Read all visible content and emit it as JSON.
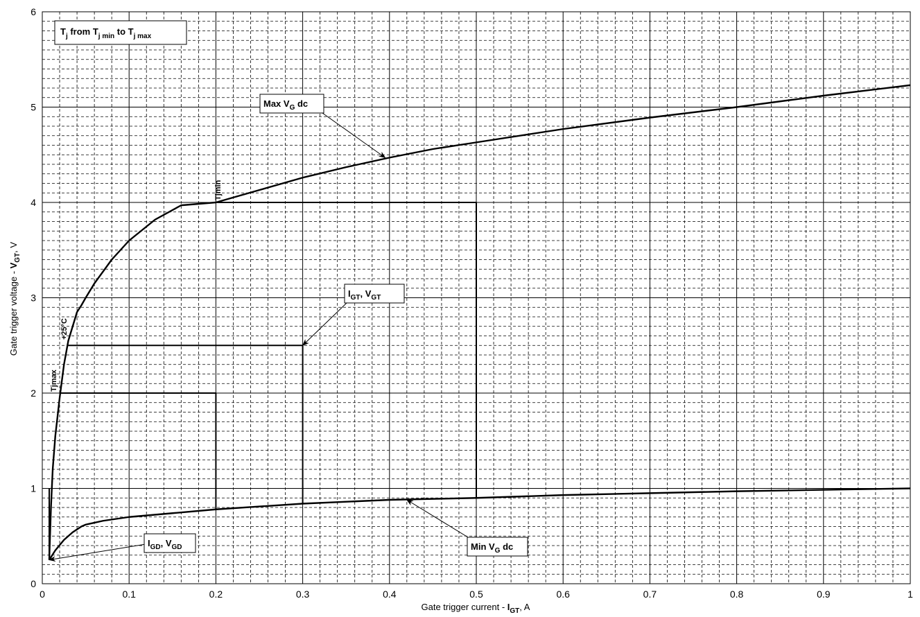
{
  "chart_data": {
    "type": "line",
    "title": "",
    "xlabel": {
      "main": "Gate trigger current - ",
      "var": "I",
      "sub": "GT",
      "unit": ", A"
    },
    "ylabel": {
      "main": "Gate trigger voltage - ",
      "var": "V",
      "sub": "GT",
      "unit": ", V"
    },
    "xlim": [
      0,
      1
    ],
    "ylim": [
      0,
      6
    ],
    "x_ticks": [
      "0",
      "0.1",
      "0.2",
      "0.3",
      "0.4",
      "0.5",
      "0.6",
      "0.7",
      "0.8",
      "0.9",
      "1"
    ],
    "y_ticks": [
      "0",
      "1",
      "2",
      "3",
      "4",
      "5",
      "6"
    ],
    "grid": true,
    "series": [
      {
        "x": [
          0.008,
          0.01,
          0.012,
          0.015,
          0.02,
          0.025,
          0.03,
          0.04,
          0.045,
          0.05,
          0.06,
          0.08,
          0.1,
          0.13,
          0.16,
          0.2,
          0.25,
          0.3,
          0.35,
          0.4,
          0.45,
          0.5,
          0.6,
          0.7,
          0.8,
          0.9,
          1.0
        ],
        "y": [
          0.25,
          0.8,
          1.2,
          1.55,
          1.95,
          2.3,
          2.55,
          2.85,
          2.92,
          3.0,
          3.15,
          3.4,
          3.6,
          3.82,
          3.97,
          4.0,
          4.13,
          4.26,
          4.37,
          4.47,
          4.56,
          4.63,
          4.77,
          4.89,
          5.0,
          5.12,
          5.23
        ]
      },
      {
        "x": [
          0.008,
          0.015,
          0.025,
          0.035,
          0.045,
          0.05,
          0.07,
          0.1,
          0.15,
          0.2,
          0.3,
          0.4,
          0.5,
          0.6,
          0.7,
          0.8,
          0.9,
          1.0
        ],
        "y": [
          0.25,
          0.35,
          0.46,
          0.54,
          0.6,
          0.62,
          0.66,
          0.7,
          0.74,
          0.78,
          0.84,
          0.88,
          0.9,
          0.93,
          0.95,
          0.97,
          0.985,
          1.0
        ]
      },
      {
        "x": [
          0.008,
          0.008
        ],
        "y": [
          0.25,
          1.0
        ]
      },
      {
        "x": [
          0.02,
          0.2,
          0.2
        ],
        "y": [
          2.0,
          2.0,
          0.78
        ]
      },
      {
        "x": [
          0.03,
          0.3,
          0.3
        ],
        "y": [
          2.5,
          2.5,
          0.84
        ]
      },
      {
        "x": [
          0.2,
          0.5,
          0.5
        ],
        "y": [
          4.0,
          4.0,
          0.9
        ]
      }
    ],
    "annotations": {
      "tj_box": {
        "t": "T",
        "j": "j",
        "from": " from T",
        "jmin": "j min",
        "to": " to T",
        "jmax": "j max"
      },
      "max_vg": {
        "label": "Max V",
        "sub": "G",
        "suffix": " dc",
        "target": [
          0.395,
          4.47
        ]
      },
      "min_vg": {
        "label": "Min V",
        "sub": "G",
        "suffix": " dc",
        "target": [
          0.42,
          0.88
        ]
      },
      "igt_vgt": {
        "a": "I",
        "a_sub": "GT",
        "sep": ", V",
        "b_sub": "GT",
        "target": [
          0.3,
          2.5
        ]
      },
      "igd_vgd": {
        "a": "I",
        "a_sub": "GD",
        "sep": ", V",
        "b_sub": "GD",
        "target": [
          0.008,
          0.25
        ]
      },
      "tjmin": {
        "text": "Tjmin"
      },
      "t25": {
        "text": "+25°C"
      },
      "tjmax": {
        "text": "Tjmax"
      }
    }
  }
}
